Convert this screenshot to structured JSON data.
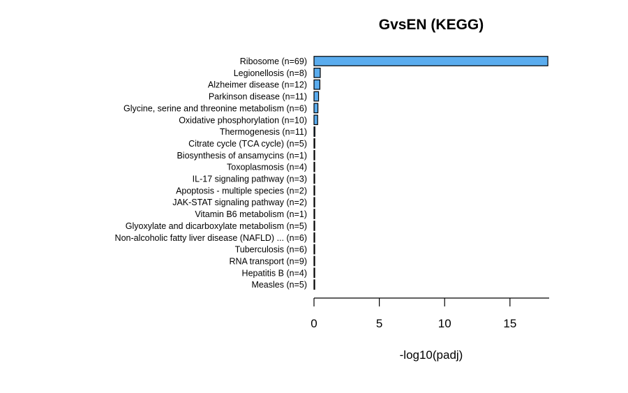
{
  "chart_data": {
    "type": "bar",
    "orientation": "horizontal",
    "title": "GvsEN (KEGG)",
    "xlabel": "-log10(padj)",
    "ylabel": "",
    "xlim": [
      0,
      18
    ],
    "xticks": [
      0,
      5,
      10,
      15
    ],
    "bar_color": "#5aacee",
    "categories": [
      "Ribosome (n=69)",
      "Legionellosis (n=8)",
      "Alzheimer disease (n=12)",
      "Parkinson disease (n=11)",
      "Glycine, serine and threonine metabolism (n=6)",
      "Oxidative phosphorylation (n=10)",
      "Thermogenesis (n=11)",
      "Citrate cycle (TCA cycle) (n=5)",
      "Biosynthesis of ansamycins (n=1)",
      "Toxoplasmosis (n=4)",
      "IL-17 signaling pathway (n=3)",
      "Apoptosis - multiple species (n=2)",
      "JAK-STAT signaling pathway (n=2)",
      "Vitamin B6 metabolism (n=1)",
      "Glyoxylate and dicarboxylate metabolism (n=5)",
      "Non-alcoholic fatty liver disease (NAFLD) ... (n=6)",
      "Tuberculosis (n=6)",
      "RNA transport (n=9)",
      "Hepatitis B (n=4)",
      "Measles (n=5)"
    ],
    "values": [
      17.9,
      0.48,
      0.45,
      0.35,
      0.3,
      0.28,
      0.07,
      0.06,
      0.05,
      0.05,
      0.05,
      0.04,
      0.04,
      0.04,
      0.04,
      0.04,
      0.04,
      0.04,
      0.04,
      0.04
    ]
  }
}
